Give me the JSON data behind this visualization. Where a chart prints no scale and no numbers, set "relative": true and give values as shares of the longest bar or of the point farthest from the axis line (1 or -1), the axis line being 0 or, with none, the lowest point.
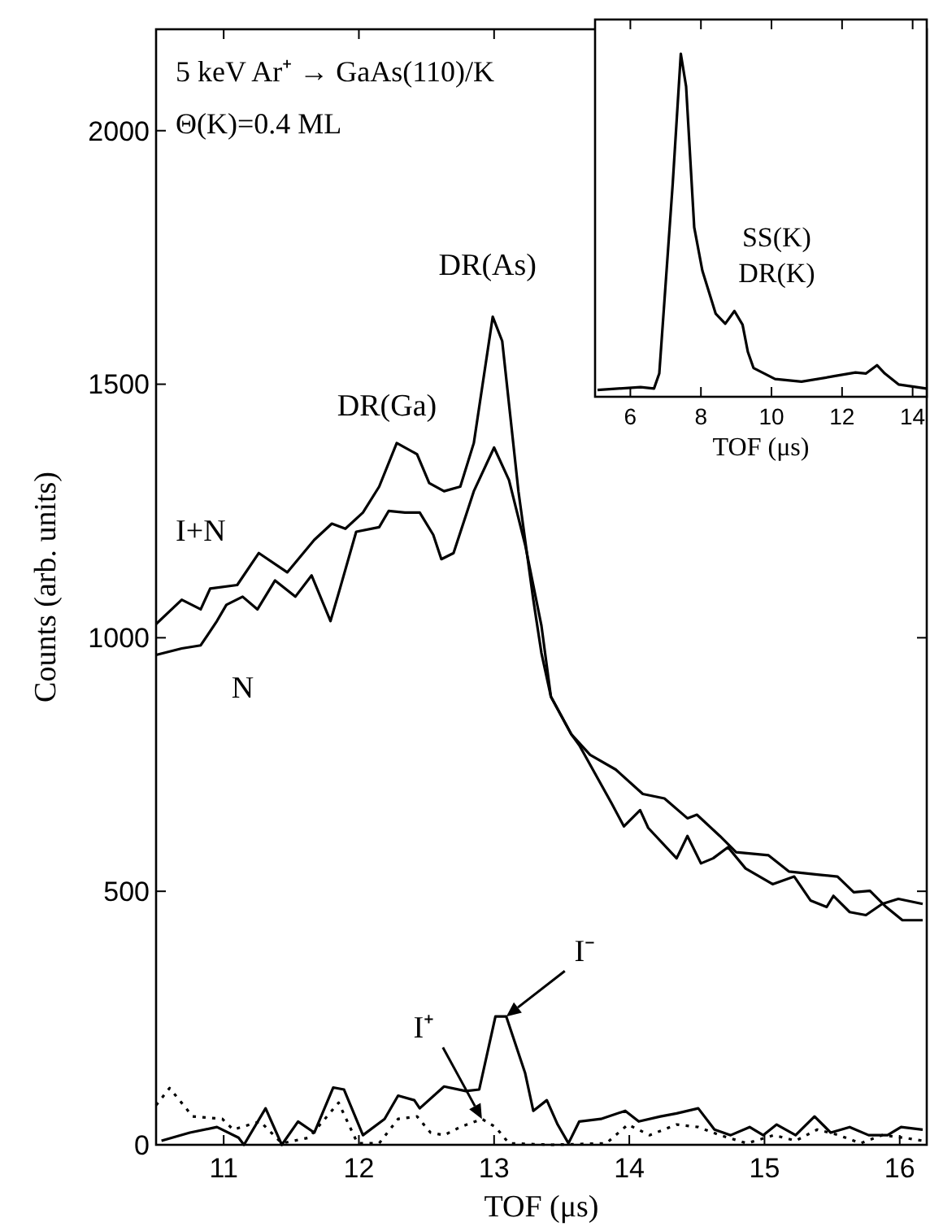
{
  "chart_data": [
    {
      "type": "line",
      "title": "5 keV Ar⁺ → GaAs(110)/K",
      "subtitle": "Θ(K)=0.4 ML",
      "xlabel": "TOF (μs)",
      "ylabel": "Counts (arb. units)",
      "xlim": [
        10.5,
        16.2
      ],
      "xticks": [
        11,
        12,
        13,
        14,
        15,
        16
      ],
      "ylim": [
        0,
        2200
      ],
      "yticks": [
        0,
        500,
        1000,
        1500,
        2000
      ],
      "series": [
        {
          "color": "#000000",
          "line_style": "solid",
          "x": [
            10.5,
            10.69,
            10.83,
            10.9,
            11.1,
            11.26,
            11.47,
            11.67,
            11.8,
            11.9,
            12.03,
            12.15,
            12.28,
            12.43,
            12.52,
            12.63,
            12.75,
            12.85,
            12.99,
            13.06,
            13.18,
            13.29,
            13.35,
            13.42,
            13.57,
            13.71,
            13.9,
            14.1,
            14.26,
            14.43,
            14.5,
            14.67,
            14.79,
            15.03,
            15.18,
            15.39,
            15.54,
            15.66,
            15.78,
            15.9,
            16.02,
            16.17
          ],
          "values": [
            1027,
            1075,
            1056,
            1097,
            1104,
            1167,
            1129,
            1193,
            1225,
            1215,
            1247,
            1298,
            1384,
            1362,
            1305,
            1289,
            1298,
            1384,
            1633,
            1585,
            1289,
            1075,
            970,
            884,
            810,
            769,
            740,
            692,
            683,
            644,
            651,
            609,
            577,
            571,
            539,
            533,
            529,
            498,
            501,
            469,
            443,
            443
          ]
        },
        {
          "color": "#000000",
          "line_style": "solid",
          "x": [
            10.5,
            10.69,
            10.83,
            10.95,
            11.02,
            11.14,
            11.25,
            11.38,
            11.53,
            11.65,
            11.79,
            11.86,
            11.98,
            12.15,
            12.22,
            12.34,
            12.45,
            12.55,
            12.61,
            12.7,
            12.85,
            13.0,
            13.11,
            13.23,
            13.35,
            13.42,
            13.57,
            13.63,
            13.87,
            13.96,
            14.08,
            14.14,
            14.35,
            14.43,
            14.53,
            14.62,
            14.73,
            14.86,
            15.06,
            15.22,
            15.34,
            15.46,
            15.51,
            15.63,
            15.75,
            15.87,
            15.99,
            16.17
          ],
          "values": [
            966,
            979,
            985,
            1033,
            1065,
            1081,
            1056,
            1113,
            1081,
            1123,
            1033,
            1097,
            1209,
            1218,
            1250,
            1247,
            1247,
            1203,
            1155,
            1167,
            1289,
            1375,
            1311,
            1183,
            1024,
            884,
            810,
            788,
            673,
            628,
            660,
            625,
            565,
            609,
            555,
            565,
            587,
            545,
            514,
            529,
            482,
            469,
            491,
            459,
            453,
            475,
            485,
            475
          ]
        },
        {
          "color": "#000000",
          "line_style": "solid",
          "x": [
            10.54,
            10.75,
            10.95,
            11.11,
            11.15,
            11.31,
            11.43,
            11.55,
            11.67,
            11.81,
            11.89,
            12.03,
            12.19,
            12.29,
            12.41,
            12.45,
            12.63,
            12.79,
            12.89,
            13.01,
            13.09,
            13.23,
            13.29,
            13.39,
            13.47,
            13.55,
            13.63,
            13.79,
            13.97,
            14.07,
            14.23,
            14.35,
            14.51,
            14.63,
            14.75,
            14.89,
            14.99,
            15.09,
            15.23,
            15.37,
            15.49,
            15.63,
            15.77,
            15.91,
            16.01,
            16.17
          ],
          "values": [
            8,
            24,
            35,
            14,
            0,
            72,
            0,
            46,
            24,
            113,
            109,
            19,
            51,
            97,
            88,
            72,
            115,
            106,
            109,
            253,
            253,
            141,
            67,
            88,
            40,
            3,
            46,
            51,
            67,
            46,
            56,
            62,
            72,
            30,
            19,
            35,
            19,
            40,
            19,
            56,
            24,
            35,
            19,
            19,
            35,
            30
          ]
        },
        {
          "color": "#000000",
          "line_style": "dotted",
          "x": [
            10.5,
            10.6,
            10.77,
            10.99,
            11.07,
            11.27,
            11.43,
            11.63,
            11.85,
            11.99,
            12.15,
            12.29,
            12.43,
            12.53,
            12.63,
            12.75,
            12.91,
            13.01,
            13.11,
            13.43,
            13.83,
            13.99,
            14.15,
            14.35,
            14.51,
            14.67,
            14.87,
            15.07,
            15.23,
            15.39,
            15.55,
            15.71,
            15.87,
            16.03,
            16.17
          ],
          "values": [
            78,
            112,
            56,
            51,
            30,
            46,
            3,
            14,
            83,
            3,
            3,
            51,
            56,
            24,
            19,
            35,
            51,
            35,
            3,
            0,
            3,
            40,
            19,
            40,
            35,
            19,
            3,
            19,
            8,
            30,
            19,
            3,
            19,
            14,
            8
          ]
        }
      ],
      "annotations": [
        {
          "text": "I+N",
          "x": 10.83,
          "y": 1056
        },
        {
          "text": "N",
          "x": 11.14,
          "y": 1081
        },
        {
          "text": "DR(Ga)",
          "x": 12.28,
          "y": 1384
        },
        {
          "text": "DR(As)",
          "x": 13.06,
          "y": 1633
        },
        {
          "text": "I⁻",
          "x": 13.09,
          "y": 253
        },
        {
          "text": "I⁺",
          "x": 12.91,
          "y": 51
        }
      ]
    },
    {
      "type": "line",
      "relative": true,
      "xlabel": "TOF (μs)",
      "xlim": [
        5,
        14.4
      ],
      "xticks": [
        6,
        8,
        10,
        12,
        14
      ],
      "tick_labels": "x",
      "series": [
        {
          "color": "#000000",
          "line_style": "solid",
          "x": [
            5.07,
            6.29,
            6.67,
            6.82,
            7.2,
            7.43,
            7.58,
            7.81,
            8.04,
            8.42,
            8.69,
            8.95,
            9.18,
            9.33,
            9.49,
            10.1,
            10.85,
            11.77,
            12.38,
            12.68,
            12.99,
            13.21,
            13.6,
            14.39
          ],
          "values": [
            0.02,
            0.028,
            0.024,
            0.068,
            0.62,
            1.0,
            0.905,
            0.494,
            0.368,
            0.242,
            0.213,
            0.25,
            0.21,
            0.131,
            0.084,
            0.052,
            0.044,
            0.06,
            0.071,
            0.068,
            0.092,
            0.068,
            0.036,
            0.024
          ]
        }
      ],
      "annotations": [
        {
          "text": "SS(K)",
          "x": 8.95,
          "y": 0.25
        },
        {
          "text": "DR(K)",
          "x": 8.95,
          "y": 0.25
        }
      ]
    }
  ]
}
